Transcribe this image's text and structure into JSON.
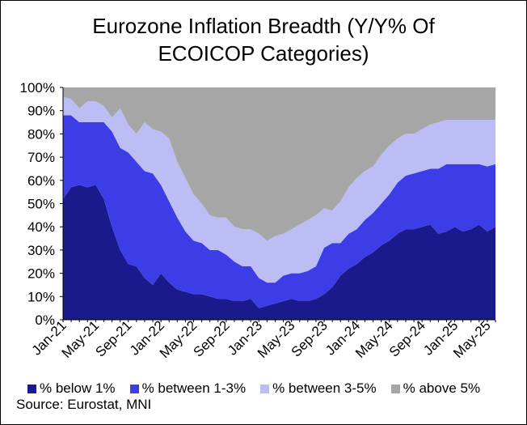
{
  "chart_data": {
    "type": "area",
    "stacked": true,
    "title_lines": [
      "Eurozone Inflation Breadth (Y/Y% Of",
      "ECOICOP Categories)"
    ],
    "ylim": [
      0,
      100
    ],
    "y_ticks": [
      "0%",
      "10%",
      "20%",
      "30%",
      "40%",
      "50%",
      "60%",
      "70%",
      "80%",
      "90%",
      "100%"
    ],
    "x_ticks": [
      "Jan-21",
      "May-21",
      "Sep-21",
      "Jan-22",
      "May-22",
      "Sep-22",
      "Jan-23",
      "May-23",
      "Sep-23",
      "Jan-24",
      "May-24",
      "Sep-24",
      "Jan-25",
      "May-25"
    ],
    "x_tick_month_index": [
      0,
      4,
      8,
      12,
      16,
      20,
      24,
      28,
      32,
      36,
      40,
      44,
      48,
      52
    ],
    "months": [
      "Jan-21",
      "Feb-21",
      "Mar-21",
      "Apr-21",
      "May-21",
      "Jun-21",
      "Jul-21",
      "Aug-21",
      "Sep-21",
      "Oct-21",
      "Nov-21",
      "Dec-21",
      "Jan-22",
      "Feb-22",
      "Mar-22",
      "Apr-22",
      "May-22",
      "Jun-22",
      "Jul-22",
      "Aug-22",
      "Sep-22",
      "Oct-22",
      "Nov-22",
      "Dec-22",
      "Jan-23",
      "Feb-23",
      "Mar-23",
      "Apr-23",
      "May-23",
      "Jun-23",
      "Jul-23",
      "Aug-23",
      "Sep-23",
      "Oct-23",
      "Nov-23",
      "Dec-23",
      "Jan-24",
      "Feb-24",
      "Mar-24",
      "Apr-24",
      "May-24",
      "Jun-24",
      "Jul-24",
      "Aug-24",
      "Sep-24",
      "Oct-24",
      "Nov-24",
      "Dec-24",
      "Jan-25",
      "Feb-25",
      "Mar-25",
      "Apr-25",
      "May-25",
      "Jun-25"
    ],
    "series": [
      {
        "name": "% below 1%",
        "color": "#1a1a8c",
        "values": [
          52,
          57,
          58,
          57,
          58,
          52,
          40,
          30,
          24,
          23,
          18,
          15,
          20,
          16,
          13,
          12,
          11,
          11,
          10,
          9,
          9,
          8,
          8,
          9,
          5,
          6,
          7,
          8,
          9,
          8,
          8,
          9,
          11,
          14,
          19,
          22,
          24,
          27,
          29,
          32,
          34,
          37,
          39,
          39,
          40,
          41,
          37,
          38,
          40,
          38,
          39,
          41,
          38,
          40
        ]
      },
      {
        "name": "% between 1-3%",
        "color": "#3d3de8",
        "values": [
          36,
          31,
          27,
          28,
          27,
          33,
          41,
          44,
          48,
          45,
          46,
          48,
          38,
          35,
          31,
          26,
          23,
          22,
          20,
          21,
          19,
          17,
          15,
          14,
          13,
          10,
          9,
          11,
          11,
          12,
          13,
          14,
          20,
          19,
          14,
          15,
          15,
          16,
          17,
          18,
          20,
          22,
          23,
          24,
          24,
          24,
          28,
          29,
          27,
          29,
          28,
          26,
          28,
          27
        ]
      },
      {
        "name": "% between 3-5%",
        "color": "#bdbdf6",
        "values": [
          8,
          7,
          6,
          9,
          9,
          7,
          6,
          17,
          12,
          12,
          21,
          19,
          23,
          27,
          24,
          23,
          20,
          17,
          15,
          14,
          16,
          15,
          16,
          16,
          19,
          18,
          20,
          18,
          19,
          21,
          22,
          22,
          17,
          14,
          18,
          20,
          22,
          21,
          20,
          21,
          21,
          19,
          18,
          17,
          18,
          19,
          20,
          19,
          19,
          19,
          19,
          19,
          20,
          19
        ]
      },
      {
        "name": "% above 5%",
        "color": "#a6a6a6",
        "values": [
          4,
          5,
          9,
          6,
          6,
          8,
          13,
          9,
          16,
          20,
          15,
          18,
          19,
          22,
          32,
          39,
          46,
          50,
          55,
          56,
          56,
          60,
          61,
          61,
          63,
          66,
          64,
          63,
          61,
          59,
          57,
          55,
          52,
          53,
          49,
          43,
          39,
          36,
          34,
          29,
          25,
          22,
          20,
          20,
          18,
          16,
          15,
          14,
          14,
          14,
          14,
          14,
          14,
          14
        ]
      }
    ],
    "legend_position": "bottom",
    "grid": false
  },
  "source": "Source: Eurostat, MNI"
}
